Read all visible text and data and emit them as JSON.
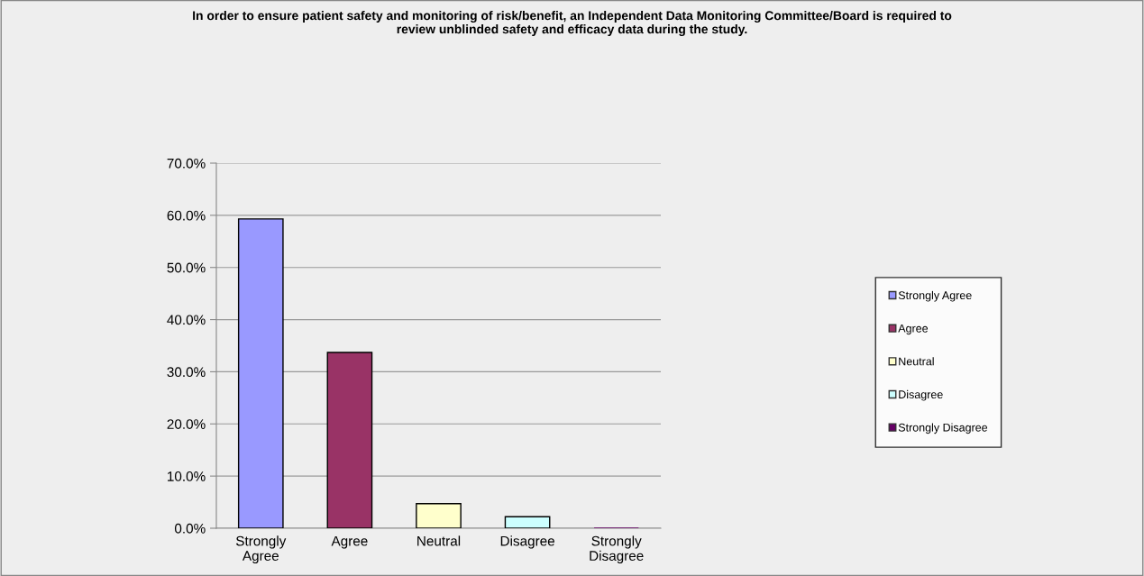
{
  "chart_data": {
    "type": "bar",
    "title": "In order to ensure patient safety and monitoring of risk/benefit, an Independent Data Monitoring Committee/Board is required to\nreview unblinded safety and efficacy data during the study.",
    "categories": [
      "Strongly Agree",
      "Agree",
      "Neutral",
      "Disagree",
      "Strongly Disagree"
    ],
    "series": [
      {
        "name": "Strongly Agree",
        "color": "#9999ff",
        "values": [
          59.3,
          null,
          null,
          null,
          null
        ]
      },
      {
        "name": "Agree",
        "color": "#993366",
        "values": [
          null,
          33.7,
          null,
          null,
          null
        ]
      },
      {
        "name": "Neutral",
        "color": "#ffffcc",
        "values": [
          null,
          null,
          4.7,
          null,
          null
        ]
      },
      {
        "name": "Disagree",
        "color": "#ccffff",
        "values": [
          null,
          null,
          null,
          2.2,
          null
        ]
      },
      {
        "name": "Strongly Disagree",
        "color": "#660066",
        "values": [
          null,
          null,
          null,
          null,
          0
        ]
      }
    ],
    "ylim": [
      0,
      70
    ],
    "yticks": [
      {
        "value": 0,
        "label": "0.0%"
      },
      {
        "value": 10,
        "label": "10.0%"
      },
      {
        "value": 20,
        "label": "20.0%"
      },
      {
        "value": 30,
        "label": "30.0%"
      },
      {
        "value": 40,
        "label": "40.0%"
      },
      {
        "value": 50,
        "label": "50.0%"
      },
      {
        "value": 60,
        "label": "60.0%"
      },
      {
        "value": 70,
        "label": "70.0%"
      }
    ],
    "grid": "y",
    "legend": "right"
  }
}
